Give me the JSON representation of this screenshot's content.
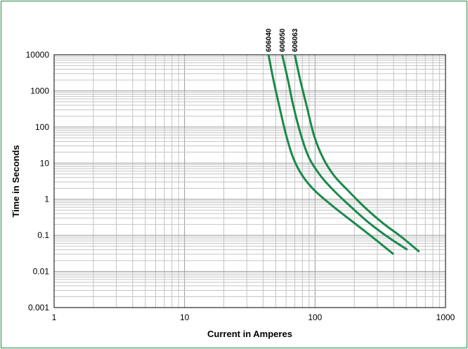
{
  "chart_data": {
    "type": "line",
    "title": "",
    "xlabel": "Current in Amperes",
    "ylabel": "Time in Seconds",
    "xscale": "log",
    "yscale": "log",
    "xlim": [
      1,
      1000
    ],
    "ylim": [
      0.001,
      10000
    ],
    "grid": true,
    "x_ticks": [
      "1",
      "10",
      "100",
      "1000"
    ],
    "y_ticks": [
      "0.001",
      "0.01",
      "0.1",
      "1",
      "10",
      "100",
      "1000",
      "10000"
    ],
    "line_color": "#1a8a4a",
    "series": [
      {
        "name": "606040",
        "points": [
          [
            44,
            10000
          ],
          [
            48,
            2000
          ],
          [
            53,
            400
          ],
          [
            60,
            60
          ],
          [
            68,
            14
          ],
          [
            80,
            4.5
          ],
          [
            100,
            1.7
          ],
          [
            140,
            0.6
          ],
          [
            200,
            0.22
          ],
          [
            280,
            0.085
          ],
          [
            400,
            0.03
          ]
        ]
      },
      {
        "name": "606050",
        "points": [
          [
            56,
            10000
          ],
          [
            62,
            2000
          ],
          [
            68,
            400
          ],
          [
            78,
            60
          ],
          [
            90,
            14
          ],
          [
            110,
            4.5
          ],
          [
            140,
            1.7
          ],
          [
            190,
            0.6
          ],
          [
            260,
            0.22
          ],
          [
            370,
            0.085
          ],
          [
            510,
            0.04
          ]
        ]
      },
      {
        "name": "606063",
        "points": [
          [
            70,
            10000
          ],
          [
            77,
            2000
          ],
          [
            86,
            400
          ],
          [
            98,
            60
          ],
          [
            115,
            14
          ],
          [
            140,
            4.5
          ],
          [
            180,
            1.7
          ],
          [
            240,
            0.6
          ],
          [
            330,
            0.22
          ],
          [
            460,
            0.09
          ],
          [
            630,
            0.035
          ]
        ]
      }
    ]
  }
}
